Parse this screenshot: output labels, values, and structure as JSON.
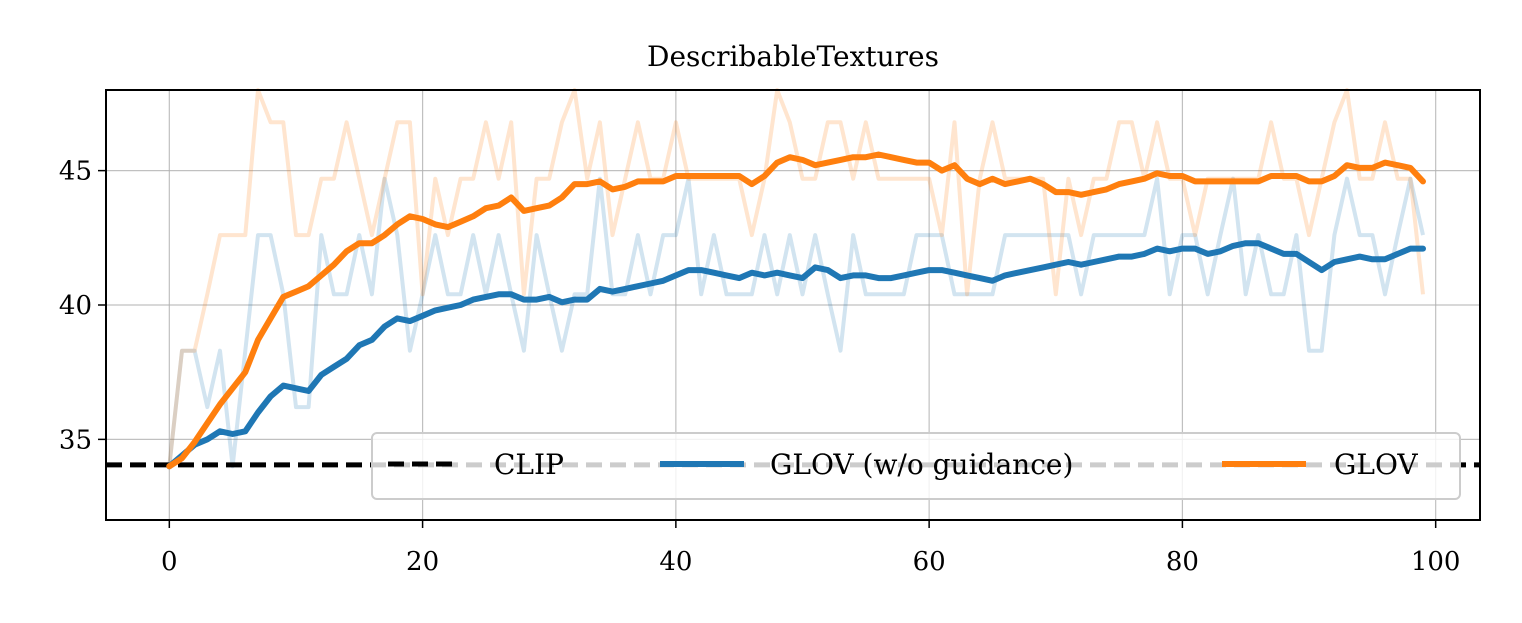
{
  "chart_data": {
    "type": "line",
    "title": "DescribableTextures",
    "xlabel": "",
    "ylabel": "",
    "xlim": [
      -5,
      103.5
    ],
    "ylim": [
      32,
      48
    ],
    "xticks": [
      0,
      20,
      40,
      60,
      80,
      100
    ],
    "yticks": [
      35,
      40,
      45
    ],
    "grid": true,
    "legend_position": "lower-right",
    "legend": [
      "CLIP",
      "GLOV (w/o guidance)",
      "GLOV"
    ],
    "colors": {
      "clip": "#000000",
      "glov_wo": "#1f77b4",
      "glov": "#ff7f0e",
      "grid": "#b0b0b0"
    },
    "baseline": {
      "name": "CLIP",
      "value": 34.05,
      "style": "dashed"
    },
    "series": [
      {
        "name": "GLOV (w/o guidance)",
        "color": "#1f77b4",
        "x": [
          0,
          1,
          2,
          3,
          4,
          5,
          6,
          7,
          8,
          9,
          10,
          11,
          12,
          13,
          14,
          15,
          16,
          17,
          18,
          19,
          20,
          21,
          22,
          23,
          24,
          25,
          26,
          27,
          28,
          29,
          30,
          31,
          32,
          33,
          34,
          35,
          36,
          37,
          38,
          39,
          40,
          41,
          42,
          43,
          44,
          45,
          46,
          47,
          48,
          49,
          50,
          51,
          52,
          53,
          54,
          55,
          56,
          57,
          58,
          59,
          60,
          61,
          62,
          63,
          64,
          65,
          66,
          67,
          68,
          69,
          70,
          71,
          72,
          73,
          74,
          75,
          76,
          77,
          78,
          79,
          80,
          81,
          82,
          83,
          84,
          85,
          86,
          87,
          88,
          89,
          90,
          91,
          92,
          93,
          94,
          95,
          96,
          97,
          98,
          99
        ],
        "values": [
          34.0,
          34.4,
          34.8,
          35.0,
          35.3,
          35.2,
          35.3,
          36.0,
          36.6,
          37.0,
          36.9,
          36.8,
          37.4,
          37.7,
          38.0,
          38.5,
          38.7,
          39.2,
          39.5,
          39.4,
          39.6,
          39.8,
          39.9,
          40.0,
          40.2,
          40.3,
          40.4,
          40.4,
          40.2,
          40.2,
          40.3,
          40.1,
          40.2,
          40.2,
          40.6,
          40.5,
          40.6,
          40.7,
          40.8,
          40.9,
          41.1,
          41.3,
          41.3,
          41.2,
          41.1,
          41.0,
          41.2,
          41.1,
          41.2,
          41.1,
          41.0,
          41.4,
          41.3,
          41.0,
          41.1,
          41.1,
          41.0,
          41.0,
          41.1,
          41.2,
          41.3,
          41.3,
          41.2,
          41.1,
          41.0,
          40.9,
          41.1,
          41.2,
          41.3,
          41.4,
          41.5,
          41.6,
          41.5,
          41.6,
          41.7,
          41.8,
          41.8,
          41.9,
          42.1,
          42.0,
          42.1,
          42.1,
          41.9,
          42.0,
          42.2,
          42.3,
          42.3,
          42.1,
          41.9,
          41.9,
          41.6,
          41.3,
          41.6,
          41.7,
          41.8,
          41.7,
          41.7,
          41.9,
          42.1,
          42.1
        ],
        "raw_values": [
          34.0,
          38.3,
          38.3,
          36.2,
          38.3,
          34.0,
          38.3,
          42.6,
          42.6,
          40.4,
          36.2,
          36.2,
          42.6,
          40.4,
          40.4,
          42.6,
          40.4,
          44.7,
          42.6,
          38.3,
          40.4,
          42.6,
          40.4,
          40.4,
          42.6,
          40.4,
          42.6,
          40.4,
          38.3,
          42.6,
          40.4,
          38.3,
          40.4,
          40.4,
          44.7,
          40.4,
          40.4,
          42.6,
          40.4,
          42.6,
          42.6,
          44.7,
          40.4,
          42.6,
          40.4,
          40.4,
          40.4,
          42.6,
          40.4,
          42.6,
          40.4,
          42.6,
          40.4,
          38.3,
          42.6,
          40.4,
          40.4,
          40.4,
          40.4,
          42.6,
          42.6,
          42.6,
          40.4,
          40.4,
          40.4,
          40.4,
          42.6,
          42.6,
          42.6,
          42.6,
          42.6,
          42.6,
          40.4,
          42.6,
          42.6,
          42.6,
          42.6,
          42.6,
          44.7,
          40.4,
          42.6,
          42.6,
          40.4,
          42.6,
          44.7,
          40.4,
          42.6,
          40.4,
          40.4,
          42.6,
          38.3,
          38.3,
          42.6,
          44.7,
          42.6,
          42.6,
          40.4,
          42.6,
          44.7,
          42.6
        ]
      },
      {
        "name": "GLOV",
        "color": "#ff7f0e",
        "x": [
          0,
          1,
          2,
          3,
          4,
          5,
          6,
          7,
          8,
          9,
          10,
          11,
          12,
          13,
          14,
          15,
          16,
          17,
          18,
          19,
          20,
          21,
          22,
          23,
          24,
          25,
          26,
          27,
          28,
          29,
          30,
          31,
          32,
          33,
          34,
          35,
          36,
          37,
          38,
          39,
          40,
          41,
          42,
          43,
          44,
          45,
          46,
          47,
          48,
          49,
          50,
          51,
          52,
          53,
          54,
          55,
          56,
          57,
          58,
          59,
          60,
          61,
          62,
          63,
          64,
          65,
          66,
          67,
          68,
          69,
          70,
          71,
          72,
          73,
          74,
          75,
          76,
          77,
          78,
          79,
          80,
          81,
          82,
          83,
          84,
          85,
          86,
          87,
          88,
          89,
          90,
          91,
          92,
          93,
          94,
          95,
          96,
          97,
          98,
          99
        ],
        "values": [
          34.0,
          34.3,
          34.9,
          35.6,
          36.3,
          36.9,
          37.5,
          38.7,
          39.5,
          40.3,
          40.5,
          40.7,
          41.1,
          41.5,
          42.0,
          42.3,
          42.3,
          42.6,
          43.0,
          43.3,
          43.2,
          43.0,
          42.9,
          43.1,
          43.3,
          43.6,
          43.7,
          44.0,
          43.5,
          43.6,
          43.7,
          44.0,
          44.5,
          44.5,
          44.6,
          44.3,
          44.4,
          44.6,
          44.6,
          44.6,
          44.8,
          44.8,
          44.8,
          44.8,
          44.8,
          44.8,
          44.5,
          44.8,
          45.3,
          45.5,
          45.4,
          45.2,
          45.3,
          45.4,
          45.5,
          45.5,
          45.6,
          45.5,
          45.4,
          45.3,
          45.3,
          45.0,
          45.2,
          44.7,
          44.5,
          44.7,
          44.5,
          44.6,
          44.7,
          44.5,
          44.2,
          44.2,
          44.1,
          44.2,
          44.3,
          44.5,
          44.6,
          44.7,
          44.9,
          44.8,
          44.8,
          44.6,
          44.6,
          44.6,
          44.6,
          44.6,
          44.6,
          44.8,
          44.8,
          44.8,
          44.6,
          44.6,
          44.8,
          45.2,
          45.1,
          45.1,
          45.3,
          45.2,
          45.1,
          44.6
        ],
        "raw_values": [
          34.0,
          38.3,
          38.3,
          40.4,
          42.6,
          42.6,
          42.6,
          48.0,
          46.8,
          46.8,
          42.6,
          42.6,
          44.7,
          44.7,
          46.8,
          44.7,
          42.6,
          44.7,
          46.8,
          46.8,
          40.4,
          44.7,
          42.6,
          44.7,
          44.7,
          46.8,
          44.7,
          46.8,
          40.4,
          44.7,
          44.7,
          46.8,
          48.0,
          44.7,
          46.8,
          42.6,
          44.7,
          46.8,
          44.7,
          44.7,
          46.8,
          44.7,
          44.7,
          44.7,
          44.7,
          44.7,
          42.6,
          44.7,
          48.0,
          46.8,
          44.7,
          44.7,
          46.8,
          46.8,
          44.7,
          46.8,
          44.7,
          44.7,
          44.7,
          44.7,
          44.7,
          42.6,
          46.8,
          40.4,
          44.7,
          46.8,
          44.7,
          44.7,
          44.7,
          44.7,
          40.4,
          44.7,
          42.6,
          44.7,
          44.7,
          46.8,
          46.8,
          44.7,
          46.8,
          44.7,
          44.7,
          42.6,
          44.7,
          44.7,
          44.7,
          44.7,
          44.7,
          46.8,
          44.7,
          44.7,
          42.6,
          44.7,
          46.8,
          48.0,
          44.7,
          44.7,
          46.8,
          44.7,
          44.7,
          40.4
        ]
      }
    ]
  }
}
